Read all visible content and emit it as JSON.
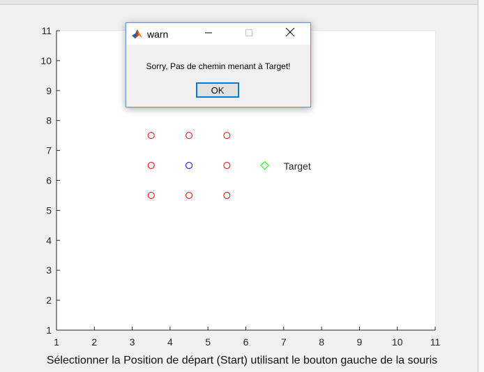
{
  "figure": {
    "xlabel": "Sélectionner la Position de départ (Start) utilisant le bouton gauche de la souris"
  },
  "dialog": {
    "title": "warn",
    "message": "Sorry, Pas de chemin menant à Target!",
    "ok_label": "OK",
    "buttons": {
      "minimize": "minimize-icon",
      "maximize": "maximize-icon",
      "close": "close-icon"
    }
  },
  "chart_data": {
    "type": "scatter",
    "xlim": [
      1,
      11
    ],
    "ylim": [
      1,
      11
    ],
    "xticks": [
      "1",
      "2",
      "3",
      "4",
      "5",
      "6",
      "7",
      "8",
      "9",
      "10",
      "11"
    ],
    "yticks": [
      "1",
      "2",
      "3",
      "4",
      "5",
      "6",
      "7",
      "8",
      "9",
      "10",
      "11"
    ],
    "grid": true,
    "xlabel": "Sélectionner la Position de départ (Start) utilisant le bouton gauche de la souris",
    "series": [
      {
        "marker": "circle",
        "color": "#ff0000",
        "x": [
          3.5,
          4.5,
          5.5,
          3.5,
          5.5,
          3.5,
          4.5,
          5.5
        ],
        "y": [
          7.5,
          7.5,
          7.5,
          6.5,
          6.5,
          5.5,
          5.5,
          5.5
        ]
      },
      {
        "marker": "circle",
        "color": "#0000ff",
        "x": [
          4.5
        ],
        "y": [
          6.5
        ]
      },
      {
        "marker": "diamond",
        "color": "#00ff00",
        "x": [
          6.5
        ],
        "y": [
          6.5
        ]
      }
    ],
    "annotations": [
      {
        "text": "Target",
        "x": 7,
        "y": 6.5
      }
    ]
  }
}
